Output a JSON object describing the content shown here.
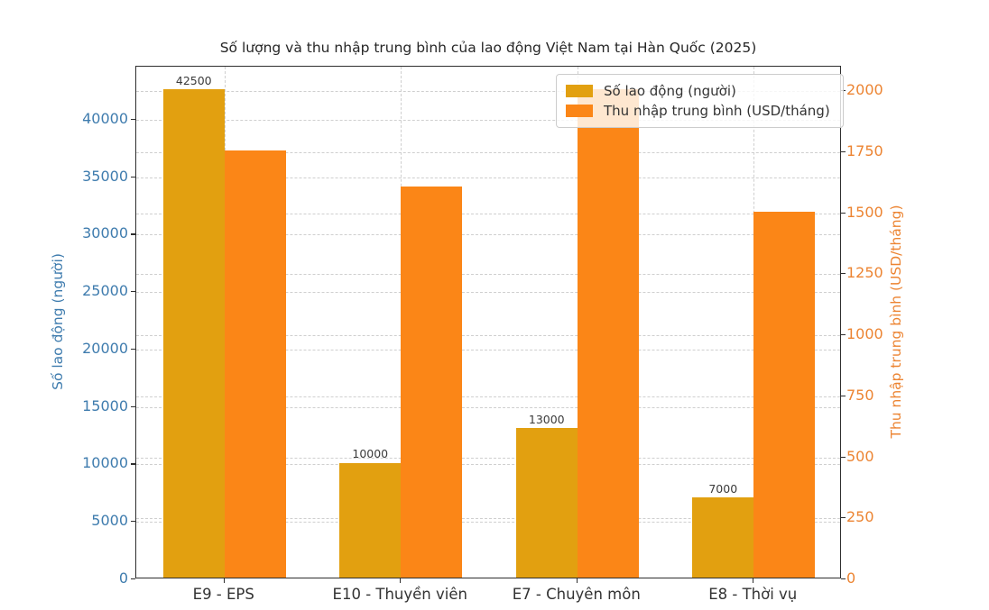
{
  "title": "Số lượng và thu nhập trung bình của lao động Việt Nam tại Hàn Quốc (2025)",
  "chart_data": {
    "type": "bar",
    "categories": [
      "E9 - EPS",
      "E10 - Thuyền viên",
      "E7 - Chuyên môn",
      "E8 - Thời vụ"
    ],
    "series": [
      {
        "name": "Số lao động (người)",
        "axis": "left",
        "color": "#E2A010",
        "values": [
          42500,
          10000,
          13000,
          7000
        ],
        "value_labels": [
          "42500",
          "10000",
          "13000",
          "7000"
        ]
      },
      {
        "name": "Thu nhập trung bình (USD/tháng)",
        "axis": "right",
        "color": "#FB8617",
        "values": [
          1750,
          1600,
          2000,
          1500
        ]
      }
    ],
    "left_axis": {
      "label": "Số lao động (người)",
      "color": "#3F7CAE",
      "ticks": [
        0,
        5000,
        10000,
        15000,
        20000,
        25000,
        30000,
        35000,
        40000
      ],
      "min": 0,
      "max": 44625
    },
    "right_axis": {
      "label": "Thu nhập trung bình (USD/tháng)",
      "color": "#EC8432",
      "ticks": [
        0,
        250,
        500,
        750,
        1000,
        1250,
        1500,
        1750,
        2000
      ],
      "min": 0,
      "max": 2100
    },
    "grid": "both-axes-dashed",
    "legend_position": "upper-right"
  }
}
